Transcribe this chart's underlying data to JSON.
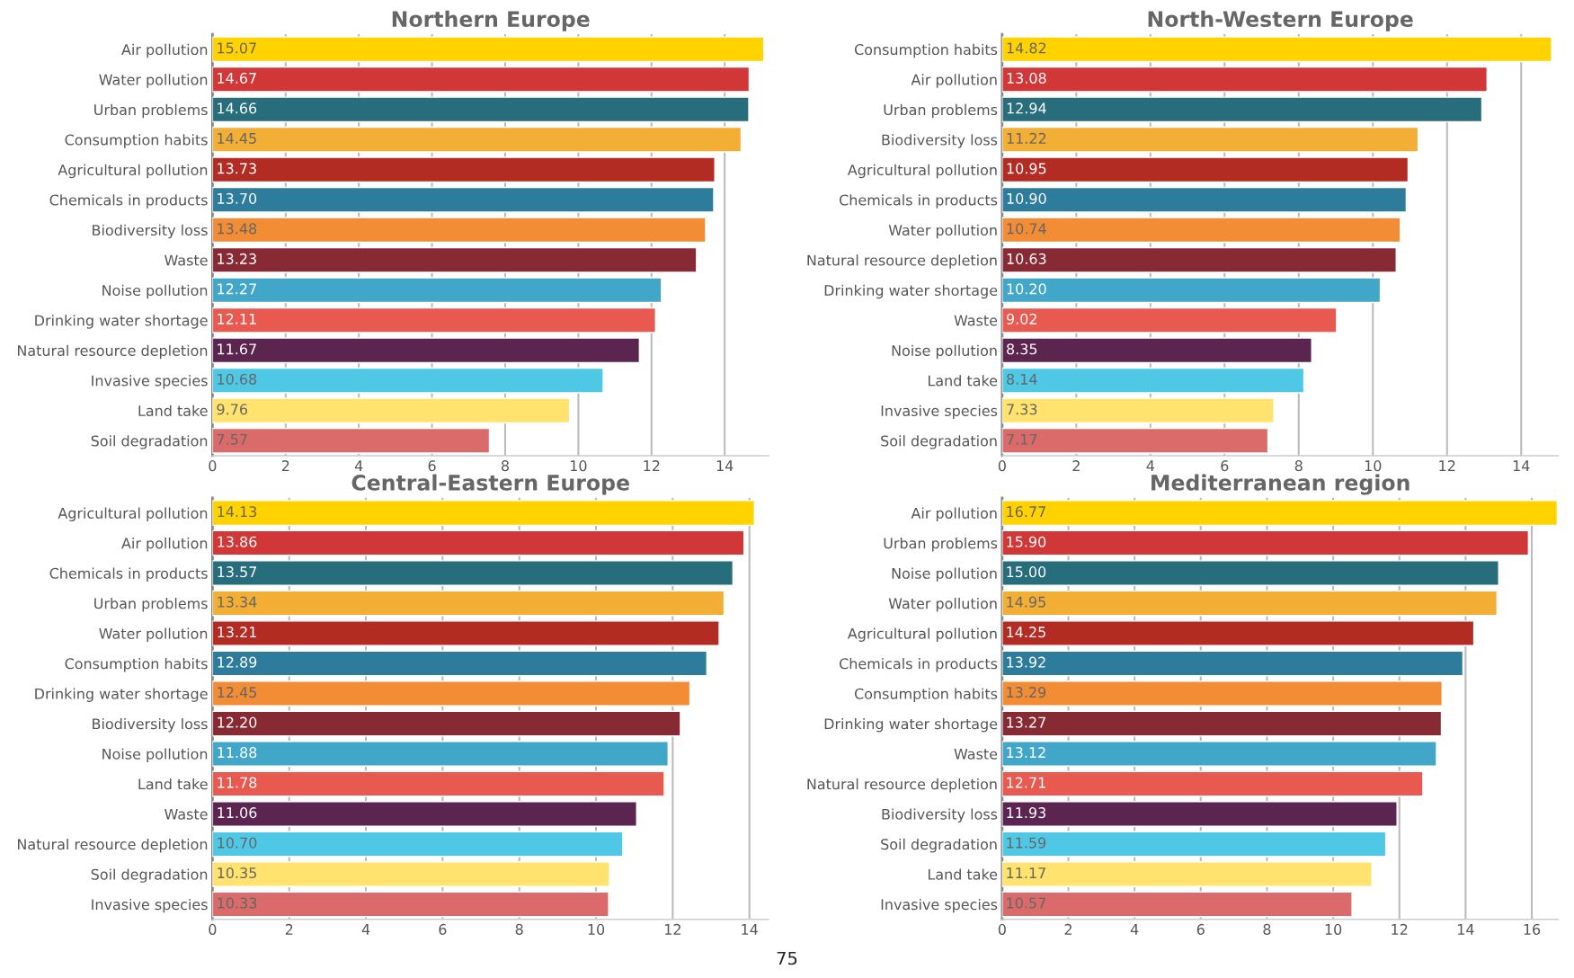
{
  "chart_data": [
    {
      "type": "bar",
      "orientation": "horizontal",
      "title": "Northern Europe",
      "categories": [
        "Air pollution",
        "Water pollution",
        "Urban problems",
        "Consumption habits",
        "Agricultural pollution",
        "Chemicals in products",
        "Biodiversity loss",
        "Waste",
        "Noise pollution",
        "Drinking water shortage",
        "Natural resource depletion",
        "Invasive species",
        "Land take",
        "Soil degradation"
      ],
      "values": [
        15.07,
        14.67,
        14.66,
        14.45,
        13.73,
        13.7,
        13.48,
        13.23,
        12.27,
        12.11,
        11.67,
        10.68,
        9.76,
        7.57
      ],
      "value_labels": [
        "15.07",
        "14.67",
        "14.66",
        "14.45",
        "13.73",
        "13.70",
        "13.48",
        "13.23",
        "12.27",
        "12.11",
        "11.67",
        "10.68",
        "9.76",
        "7.57"
      ],
      "colors": [
        "#ffd200",
        "#d13737",
        "#276d7b",
        "#f2ae35",
        "#b22c24",
        "#2e7c9c",
        "#f28d35",
        "#882a33",
        "#41a6c8",
        "#e85a4f",
        "#5c2550",
        "#4fc8e6",
        "#ffe36e",
        "#db6b6b"
      ],
      "xlim": [
        0,
        15.2
      ],
      "xticks": [
        0,
        2,
        4,
        6,
        8,
        10,
        12,
        14
      ],
      "grid": "x"
    },
    {
      "type": "bar",
      "orientation": "horizontal",
      "title": "North-Western Europe",
      "categories": [
        "Consumption habits",
        "Air pollution",
        "Urban problems",
        "Biodiversity loss",
        "Agricultural pollution",
        "Chemicals in products",
        "Water pollution",
        "Natural resource depletion",
        "Drinking water shortage",
        "Waste",
        "Noise pollution",
        "Land take",
        "Invasive species",
        "Soil degradation"
      ],
      "values": [
        14.82,
        13.08,
        12.94,
        11.22,
        10.95,
        10.9,
        10.74,
        10.63,
        10.2,
        9.02,
        8.35,
        8.14,
        7.33,
        7.17
      ],
      "value_labels": [
        "14.82",
        "13.08",
        "12.94",
        "11.22",
        "10.95",
        "10.90",
        "10.74",
        "10.63",
        "10.20",
        "9.02",
        "8.35",
        "8.14",
        "7.33",
        "7.17"
      ],
      "colors": [
        "#ffd200",
        "#d13737",
        "#276d7b",
        "#f2ae35",
        "#b22c24",
        "#2e7c9c",
        "#f28d35",
        "#882a33",
        "#41a6c8",
        "#e85a4f",
        "#5c2550",
        "#4fc8e6",
        "#ffe36e",
        "#db6b6b"
      ],
      "xlim": [
        0,
        15
      ],
      "xticks": [
        0,
        2,
        4,
        6,
        8,
        10,
        12,
        14
      ],
      "grid": "x"
    },
    {
      "type": "bar",
      "orientation": "horizontal",
      "title": "Central-Eastern Europe",
      "categories": [
        "Agricultural pollution",
        "Air pollution",
        "Chemicals in products",
        "Urban problems",
        "Water pollution",
        "Consumption habits",
        "Drinking water shortage",
        "Biodiversity loss",
        "Noise pollution",
        "Land take",
        "Waste",
        "Natural resource depletion",
        "Soil degradation",
        "Invasive species"
      ],
      "values": [
        14.13,
        13.86,
        13.57,
        13.34,
        13.21,
        12.89,
        12.45,
        12.2,
        11.88,
        11.78,
        11.06,
        10.7,
        10.35,
        10.33
      ],
      "value_labels": [
        "14.13",
        "13.86",
        "13.57",
        "13.34",
        "13.21",
        "12.89",
        "12.45",
        "12.20",
        "11.88",
        "11.78",
        "11.06",
        "10.70",
        "10.35",
        "10.33"
      ],
      "colors": [
        "#ffd200",
        "#d13737",
        "#276d7b",
        "#f2ae35",
        "#b22c24",
        "#2e7c9c",
        "#f28d35",
        "#882a33",
        "#41a6c8",
        "#e85a4f",
        "#5c2550",
        "#4fc8e6",
        "#ffe36e",
        "#db6b6b"
      ],
      "xlim": [
        0,
        14.5
      ],
      "xticks": [
        0,
        2,
        4,
        6,
        8,
        10,
        12,
        14
      ],
      "grid": "x",
      "annotations": [
        "75"
      ]
    },
    {
      "type": "bar",
      "orientation": "horizontal",
      "title": "Mediterranean region",
      "categories": [
        "Air pollution",
        "Urban problems",
        "Noise pollution",
        "Water pollution",
        "Agricultural pollution",
        "Chemicals in products",
        "Consumption habits",
        "Drinking water shortage",
        "Waste",
        "Natural resource depletion",
        "Biodiversity loss",
        "Soil degradation",
        "Land take",
        "Invasive species"
      ],
      "values": [
        16.77,
        15.9,
        15.0,
        14.95,
        14.25,
        13.92,
        13.29,
        13.27,
        13.12,
        12.71,
        11.93,
        11.59,
        11.17,
        10.57
      ],
      "value_labels": [
        "16.77",
        "15.90",
        "15.00",
        "14.95",
        "14.25",
        "13.92",
        "13.29",
        "13.27",
        "13.12",
        "12.71",
        "11.93",
        "11.59",
        "11.17",
        "10.57"
      ],
      "colors": [
        "#ffd200",
        "#d13737",
        "#276d7b",
        "#f2ae35",
        "#b22c24",
        "#2e7c9c",
        "#f28d35",
        "#882a33",
        "#41a6c8",
        "#e85a4f",
        "#5c2550",
        "#4fc8e6",
        "#ffe36e",
        "#db6b6b"
      ],
      "xlim": [
        0,
        16.8
      ],
      "xticks": [
        0,
        2,
        4,
        6,
        8,
        10,
        12,
        14,
        16
      ],
      "grid": "x"
    }
  ]
}
